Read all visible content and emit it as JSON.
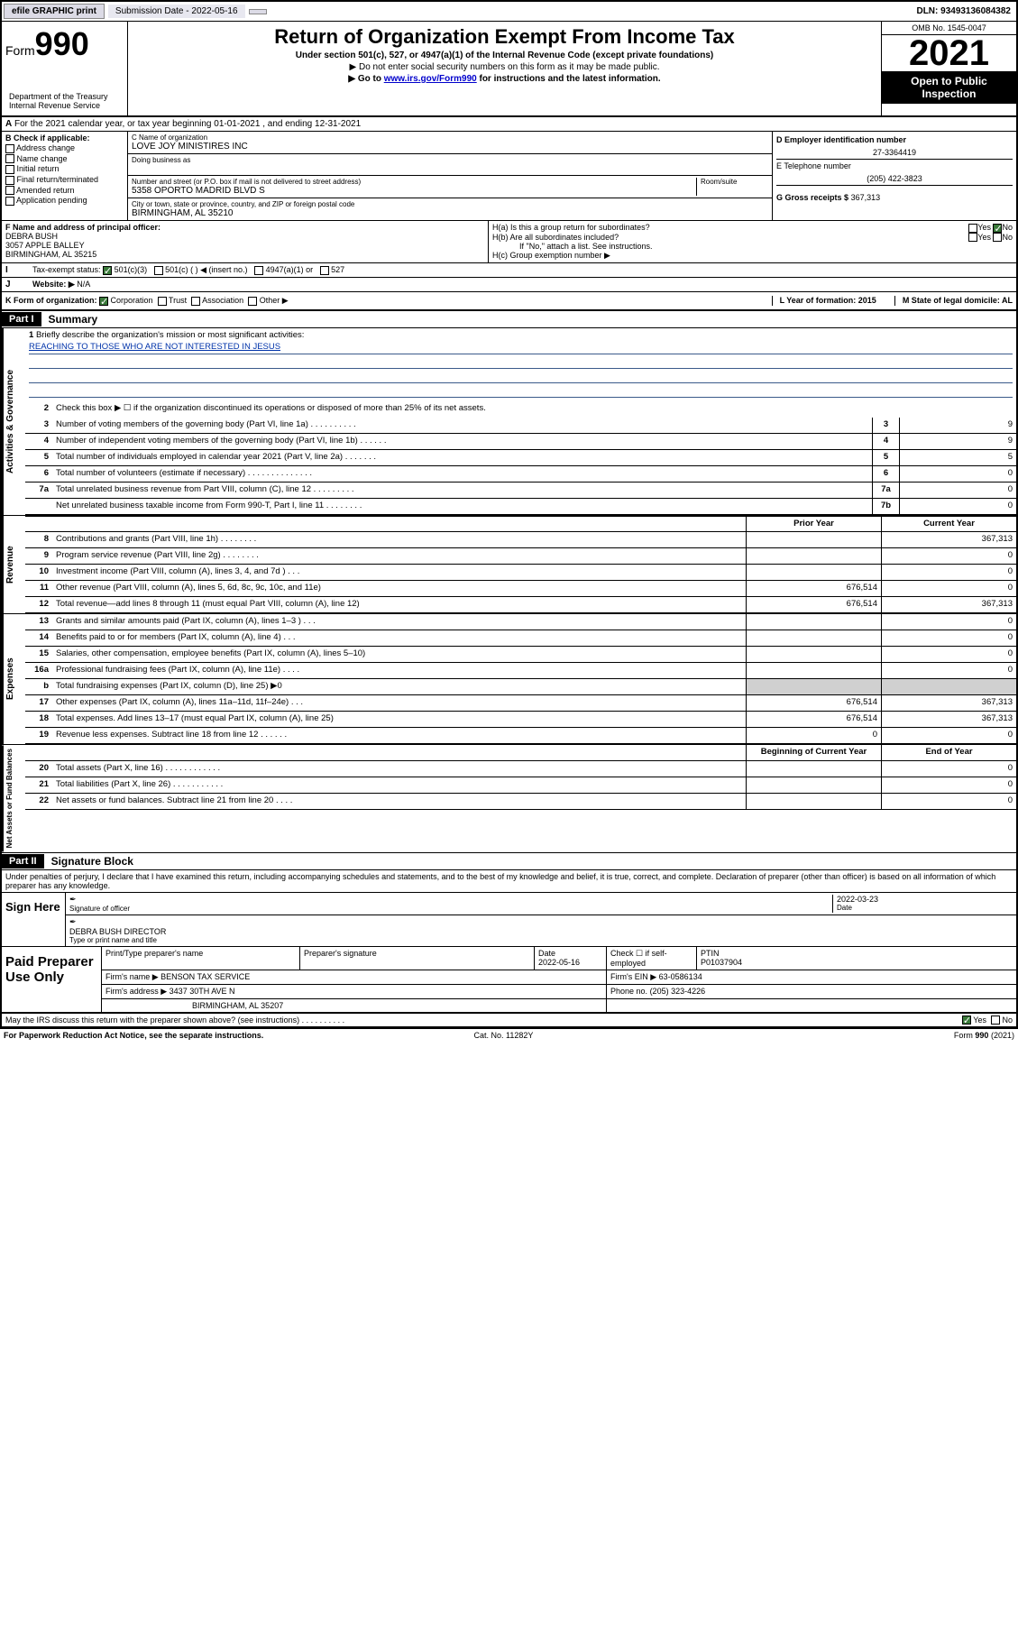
{
  "topbar": {
    "efile": "efile GRAPHIC print",
    "sub_label": "Submission Date - 2022-05-16",
    "dln": "DLN: 93493136084382"
  },
  "header": {
    "form": "Form",
    "num": "990",
    "title": "Return of Organization Exempt From Income Tax",
    "sub": "Under section 501(c), 527, or 4947(a)(1) of the Internal Revenue Code (except private foundations)",
    "note1": "▶ Do not enter social security numbers on this form as it may be made public.",
    "note2_pre": "▶ Go to ",
    "note2_link": "www.irs.gov/Form990",
    "note2_post": " for instructions and the latest information.",
    "dept": "Department of the Treasury\nInternal Revenue Service",
    "omb": "OMB No. 1545-0047",
    "year": "2021",
    "open_pub": "Open to Public Inspection"
  },
  "rowA": "For the 2021 calendar year, or tax year beginning 01-01-2021    , and ending 12-31-2021",
  "colB": {
    "hdr": "B Check if applicable:",
    "items": [
      "Address change",
      "Name change",
      "Initial return",
      "Final return/terminated",
      "Amended return",
      "Application pending"
    ]
  },
  "colC": {
    "name_lbl": "C Name of organization",
    "name": "LOVE JOY MINISTIRES INC",
    "dba_lbl": "Doing business as",
    "dba": "",
    "addr_lbl": "Number and street (or P.O. box if mail is not delivered to street address)",
    "room_lbl": "Room/suite",
    "addr": "5358 OPORTO MADRID BLVD S",
    "city_lbl": "City or town, state or province, country, and ZIP or foreign postal code",
    "city": "BIRMINGHAM, AL  35210"
  },
  "colD": {
    "ein_lbl": "D Employer identification number",
    "ein": "27-3364419",
    "tel_lbl": "E Telephone number",
    "tel": "(205) 422-3823",
    "gross_lbl": "G Gross receipts $",
    "gross": "367,313"
  },
  "rowF": {
    "lbl": "F  Name and address of principal officer:",
    "name": "DEBRA BUSH",
    "addr1": "3057 APPLE BALLEY",
    "addr2": "BIRMINGHAM, AL  35215"
  },
  "rowH": {
    "ha": "H(a)  Is this a group return for subordinates?",
    "hb": "H(b)  Are all subordinates included?",
    "hb_note": "If \"No,\" attach a list. See instructions.",
    "hc": "H(c)  Group exemption number ▶",
    "yes": "Yes",
    "no": "No"
  },
  "rowI": {
    "lbl": "Tax-exempt status:",
    "opts": [
      "501(c)(3)",
      "501(c) (  ) ◀ (insert no.)",
      "4947(a)(1) or",
      "527"
    ]
  },
  "rowJ": {
    "lbl": "Website: ▶",
    "val": "N/A"
  },
  "rowK": {
    "lbl": "K Form of organization:",
    "opts": [
      "Corporation",
      "Trust",
      "Association",
      "Other ▶"
    ],
    "L": "L Year of formation: 2015",
    "M": "M State of legal domicile: AL"
  },
  "part1": {
    "hdr": "Part I",
    "title": "Summary"
  },
  "governance": {
    "label": "Activities & Governance",
    "line1": "Briefly describe the organization's mission or most significant activities:",
    "mission": "REACHING TO THOSE WHO ARE NOT INTERESTED IN JESUS",
    "line2": "Check this box ▶ ☐  if the organization discontinued its operations or disposed of more than 25% of its net assets.",
    "lines": [
      {
        "n": "3",
        "t": "Number of voting members of the governing body (Part VI, line 1a)  .    .    .    .    .    .    .    .    .    .",
        "b": "3",
        "v": "9"
      },
      {
        "n": "4",
        "t": "Number of independent voting members of the governing body (Part VI, line 1b)  .    .    .    .    .    .",
        "b": "4",
        "v": "9"
      },
      {
        "n": "5",
        "t": "Total number of individuals employed in calendar year 2021 (Part V, line 2a)  .    .    .    .    .    .    .",
        "b": "5",
        "v": "5"
      },
      {
        "n": "6",
        "t": "Total number of volunteers (estimate if necessary)  .    .    .    .    .    .    .    .    .    .    .    .    .    .",
        "b": "6",
        "v": "0"
      },
      {
        "n": "7a",
        "t": "Total unrelated business revenue from Part VIII, column (C), line 12  .    .    .    .    .    .    .    .    .",
        "b": "7a",
        "v": "0"
      },
      {
        "n": "",
        "t": "Net unrelated business taxable income from Form 990-T, Part I, line 11  .    .    .    .    .    .    .    .",
        "b": "7b",
        "v": "0"
      }
    ]
  },
  "revenue": {
    "label": "Revenue",
    "hdr_prior": "Prior Year",
    "hdr_curr": "Current Year",
    "lines": [
      {
        "n": "8",
        "t": "Contributions and grants (Part VIII, line 1h)  .    .    .    .    .    .    .    .",
        "p": "",
        "c": "367,313"
      },
      {
        "n": "9",
        "t": "Program service revenue (Part VIII, line 2g)  .    .    .    .    .    .    .    .",
        "p": "",
        "c": "0"
      },
      {
        "n": "10",
        "t": "Investment income (Part VIII, column (A), lines 3, 4, and 7d )  .    .    .",
        "p": "",
        "c": "0"
      },
      {
        "n": "11",
        "t": "Other revenue (Part VIII, column (A), lines 5, 6d, 8c, 9c, 10c, and 11e)",
        "p": "676,514",
        "c": "0"
      },
      {
        "n": "12",
        "t": "Total revenue—add lines 8 through 11 (must equal Part VIII, column (A), line 12)",
        "p": "676,514",
        "c": "367,313"
      }
    ]
  },
  "expenses": {
    "label": "Expenses",
    "lines": [
      {
        "n": "13",
        "t": "Grants and similar amounts paid (Part IX, column (A), lines 1–3 )  .    .    .",
        "p": "",
        "c": "0"
      },
      {
        "n": "14",
        "t": "Benefits paid to or for members (Part IX, column (A), line 4)  .    .    .",
        "p": "",
        "c": "0"
      },
      {
        "n": "15",
        "t": "Salaries, other compensation, employee benefits (Part IX, column (A), lines 5–10)",
        "p": "",
        "c": "0"
      },
      {
        "n": "16a",
        "t": "Professional fundraising fees (Part IX, column (A), line 11e)  .    .    .    .",
        "p": "",
        "c": "0"
      },
      {
        "n": "b",
        "t": "Total fundraising expenses (Part IX, column (D), line 25) ▶0",
        "p": "shaded",
        "c": "shaded"
      },
      {
        "n": "17",
        "t": "Other expenses (Part IX, column (A), lines 11a–11d, 11f–24e)  .    .    .",
        "p": "676,514",
        "c": "367,313"
      },
      {
        "n": "18",
        "t": "Total expenses. Add lines 13–17 (must equal Part IX, column (A), line 25)",
        "p": "676,514",
        "c": "367,313"
      },
      {
        "n": "19",
        "t": "Revenue less expenses. Subtract line 18 from line 12  .    .    .    .    .    .",
        "p": "0",
        "c": "0"
      }
    ]
  },
  "netassets": {
    "label": "Net Assets or Fund Balances",
    "hdr_begin": "Beginning of Current Year",
    "hdr_end": "End of Year",
    "lines": [
      {
        "n": "20",
        "t": "Total assets (Part X, line 16)  .    .    .    .    .    .    .    .    .    .    .    .",
        "p": "",
        "c": "0"
      },
      {
        "n": "21",
        "t": "Total liabilities (Part X, line 26)  .    .    .    .    .    .    .    .    .    .    .",
        "p": "",
        "c": "0"
      },
      {
        "n": "22",
        "t": "Net assets or fund balances. Subtract line 21 from line 20  .    .    .    .",
        "p": "",
        "c": "0"
      }
    ]
  },
  "part2": {
    "hdr": "Part II",
    "title": "Signature Block"
  },
  "sig": {
    "decl": "Under penalties of perjury, I declare that I have examined this return, including accompanying schedules and statements, and to the best of my knowledge and belief, it is true, correct, and complete. Declaration of preparer (other than officer) is based on all information of which preparer has any knowledge.",
    "sign_here": "Sign Here",
    "sig_officer": "Signature of officer",
    "date": "2022-03-23",
    "date_lbl": "Date",
    "name_title": "DEBRA BUSH DIRECTOR",
    "name_lbl": "Type or print name and title"
  },
  "paid": {
    "hdr": "Paid Preparer Use Only",
    "col1": "Print/Type preparer's name",
    "col2": "Preparer's signature",
    "col3": "Date",
    "col3v": "2022-05-16",
    "col4": "Check ☐ if self-employed",
    "col5": "PTIN",
    "col5v": "P01037904",
    "firm_name_lbl": "Firm's name    ▶",
    "firm_name": "BENSON TAX SERVICE",
    "firm_ein_lbl": "Firm's EIN ▶",
    "firm_ein": "63-0586134",
    "firm_addr_lbl": "Firm's address ▶",
    "firm_addr": "3437 30TH AVE N",
    "firm_addr2": "BIRMINGHAM, AL  35207",
    "phone_lbl": "Phone no.",
    "phone": "(205) 323-4226"
  },
  "footer": {
    "discuss": "May the IRS discuss this return with the preparer shown above? (see instructions)  .    .    .    .    .    .    .    .    .    .",
    "yes": "Yes",
    "no": "No",
    "paperwork": "For Paperwork Reduction Act Notice, see the separate instructions.",
    "cat": "Cat. No. 11282Y",
    "form": "Form 990 (2021)"
  }
}
